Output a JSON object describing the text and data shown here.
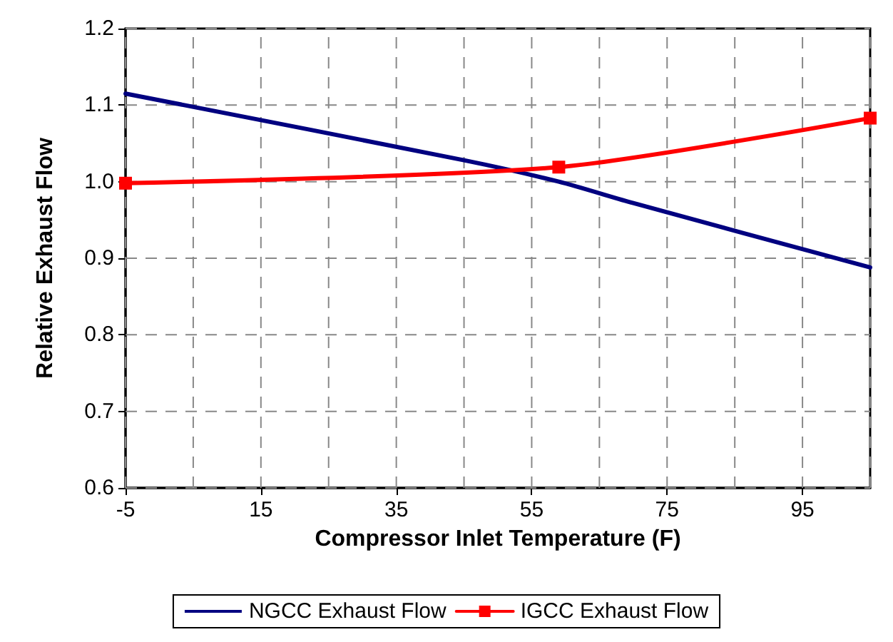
{
  "chart_data": {
    "type": "line",
    "xlabel": "Compressor Inlet Temperature (F)",
    "ylabel": "Relative Exhaust Flow",
    "xlim": [
      -5,
      105
    ],
    "xticks": [
      -5,
      {
        "value": 5,
        "label": null
      },
      15,
      {
        "value": 25,
        "label": null
      },
      35,
      {
        "value": 45,
        "label": null
      },
      55,
      {
        "value": 65,
        "label": null
      },
      75,
      {
        "value": 85,
        "label": null
      },
      95,
      {
        "value": 105,
        "label": null
      }
    ],
    "ylim": [
      0.6,
      1.2
    ],
    "yticks": [
      0.6,
      0.7,
      0.8,
      0.9,
      {
        "value": 1,
        "label": "1.0"
      },
      1.1,
      1.2
    ],
    "grid": true,
    "legend": "bottom",
    "line_style": "solid",
    "series": [
      {
        "name": "NGCC Exhaust Flow",
        "color": "#000080",
        "marker": "none",
        "x": [
          -5,
          45,
          59,
          70,
          105
        ],
        "values": [
          1.115,
          1.028,
          1.0,
          0.972,
          0.888
        ]
      },
      {
        "name": "IGCC Exhaust Flow",
        "color": "#ff0000",
        "marker": "square",
        "x": [
          -5,
          59,
          105
        ],
        "values": [
          0.998,
          1.019,
          1.083
        ]
      }
    ]
  }
}
